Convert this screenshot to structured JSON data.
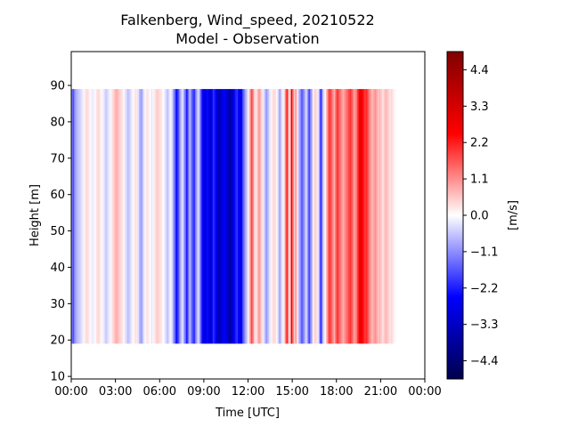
{
  "chart_data": {
    "type": "heatmap",
    "title": "Falkenberg, Wind_speed, 20210522",
    "subtitle": "Model - Observation",
    "xlabel": "Time [UTC]",
    "ylabel": "Height [m]",
    "xlim": [
      0,
      24
    ],
    "ylim": [
      9.3,
      99.3
    ],
    "x_ticks": [
      {
        "value": 0,
        "label": "00:00"
      },
      {
        "value": 3,
        "label": "03:00"
      },
      {
        "value": 6,
        "label": "06:00"
      },
      {
        "value": 9,
        "label": "09:00"
      },
      {
        "value": 12,
        "label": "12:00"
      },
      {
        "value": 15,
        "label": "15:00"
      },
      {
        "value": 18,
        "label": "18:00"
      },
      {
        "value": 21,
        "label": "21:00"
      },
      {
        "value": 24,
        "label": "00:00"
      }
    ],
    "y_ticks": [
      {
        "value": 10,
        "label": "10"
      },
      {
        "value": 20,
        "label": "20"
      },
      {
        "value": 30,
        "label": "30"
      },
      {
        "value": 40,
        "label": "40"
      },
      {
        "value": 50,
        "label": "50"
      },
      {
        "value": 60,
        "label": "60"
      },
      {
        "value": 70,
        "label": "70"
      },
      {
        "value": 80,
        "label": "80"
      },
      {
        "value": 90,
        "label": "90"
      }
    ],
    "heights": [
      19,
      89
    ],
    "time_step_hours": 0.1,
    "values_m_s": [
      -1.3,
      -1.7,
      -1.0,
      -0.8,
      -0.6,
      -0.5,
      -0.4,
      -0.2,
      -0.1,
      0.2,
      0.4,
      0.3,
      0.1,
      -0.1,
      -0.2,
      -0.1,
      0.1,
      0.3,
      0.4,
      0.2,
      0.1,
      -0.1,
      -0.3,
      -0.5,
      -0.4,
      -0.2,
      -0.1,
      0.2,
      0.4,
      0.6,
      0.8,
      0.7,
      0.5,
      0.4,
      0.3,
      0.1,
      -0.2,
      -0.4,
      -0.6,
      -0.5,
      -0.3,
      -0.1,
      0.1,
      0.3,
      0.2,
      -0.3,
      -0.7,
      -1.0,
      -0.6,
      -0.2,
      0.1,
      0.3,
      0.2,
      0.0,
      -0.2,
      -0.1,
      0.2,
      0.4,
      0.5,
      0.4,
      0.3,
      0.2,
      0.0,
      -0.2,
      -0.4,
      -0.6,
      -0.3,
      -0.1,
      -0.4,
      -1.0,
      -1.6,
      -2.4,
      -1.9,
      -1.2,
      -0.6,
      -0.3,
      -0.8,
      -1.5,
      -2.2,
      -1.4,
      -0.7,
      -1.2,
      -1.8,
      -2.0,
      -1.3,
      -0.6,
      -0.4,
      -1.1,
      -2.1,
      -2.6,
      -2.9,
      -2.7,
      -2.4,
      -2.8,
      -3.1,
      -2.6,
      -2.0,
      -2.3,
      -2.8,
      -3.2,
      -3.6,
      -3.3,
      -2.9,
      -2.5,
      -2.7,
      -3.0,
      -3.4,
      -3.8,
      -3.5,
      -3.1,
      -2.6,
      -2.2,
      -2.0,
      -2.4,
      -2.9,
      -2.5,
      -1.8,
      -1.2,
      -0.8,
      -0.4,
      0.2,
      1.0,
      1.8,
      1.1,
      0.4,
      0.2,
      0.6,
      1.0,
      0.7,
      0.3,
      -0.2,
      -0.6,
      -1.0,
      -0.7,
      -0.3,
      -0.1,
      0.2,
      0.4,
      0.3,
      0.1,
      -0.4,
      -0.9,
      -0.5,
      -0.1,
      0.3,
      1.2,
      2.2,
      0.8,
      0.2,
      2.7,
      1.4,
      0.5,
      1.0,
      0.2,
      -0.6,
      -1.1,
      -1.6,
      -1.3,
      -0.8,
      -0.4,
      -1.0,
      -1.8,
      -1.2,
      -0.6,
      0.1,
      0.5,
      0.3,
      -0.2,
      -0.9,
      -2.2,
      -0.9,
      -0.3,
      0.1,
      0.8,
      1.5,
      2.0,
      1.6,
      1.2,
      0.8,
      1.3,
      2.0,
      1.7,
      1.4,
      1.1,
      0.8,
      1.0,
      1.3,
      1.5,
      1.8,
      2.0,
      1.6,
      1.2,
      0.9,
      1.3,
      1.9,
      2.5,
      2.8,
      2.6,
      2.2,
      1.9,
      2.1,
      1.6,
      1.2,
      0.9,
      0.7,
      0.9,
      1.1,
      0.8,
      0.6,
      0.7,
      0.5,
      0.3,
      0.5,
      0.7,
      0.6,
      0.4,
      0.3,
      0.4,
      0.2,
      0.1
    ],
    "colorbar": {
      "label": "[m/s]",
      "vmin": -4.95,
      "vmax": 4.95,
      "ticks": [
        {
          "value": -4.4,
          "label": "−4.4"
        },
        {
          "value": -3.3,
          "label": "−3.3"
        },
        {
          "value": -2.2,
          "label": "−2.2"
        },
        {
          "value": -1.1,
          "label": "−1.1"
        },
        {
          "value": 0.0,
          "label": "0.0"
        },
        {
          "value": 1.1,
          "label": "1.1"
        },
        {
          "value": 2.2,
          "label": "2.2"
        },
        {
          "value": 3.3,
          "label": "3.3"
        },
        {
          "value": 4.4,
          "label": "4.4"
        }
      ],
      "colormap": "seismic"
    },
    "grid": false
  }
}
